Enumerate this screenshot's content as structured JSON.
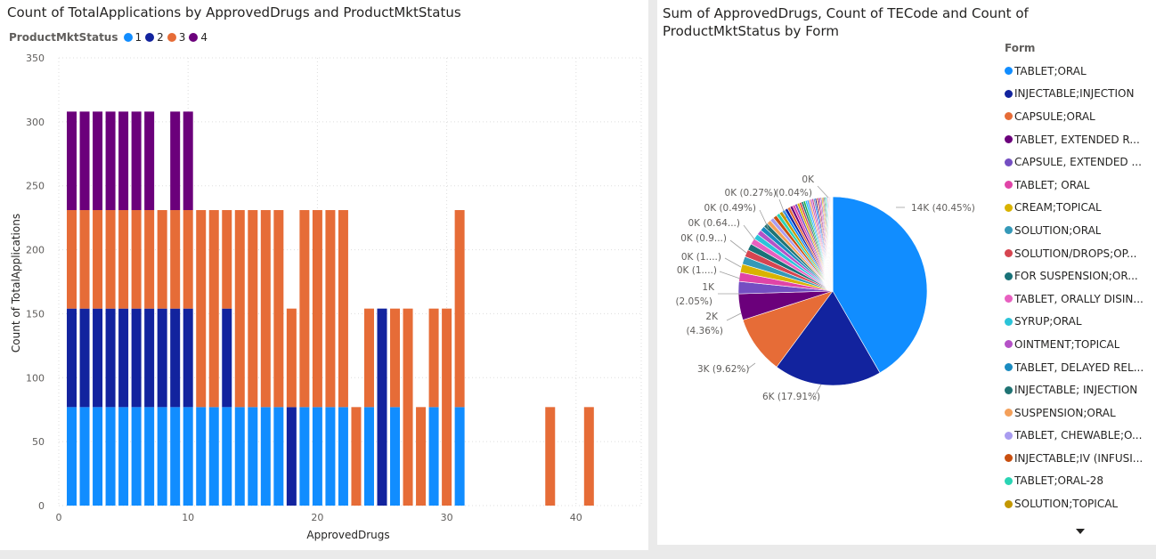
{
  "left_chart": {
    "title": "Count of TotalApplications by ApprovedDrugs and ProductMktStatus",
    "legend_title": "ProductMktStatus",
    "colors": {
      "1": "#118dff",
      "2": "#12239e",
      "3": "#e66c37",
      "4": "#6b007b"
    }
  },
  "right_chart": {
    "title": "Sum of ApprovedDrugs, Count of TECode and Count of ProductMktStatus by Form",
    "legend_title": "Form",
    "slice_labels": [
      "14K (40.45%)",
      "6K (17.91%)",
      "3K (9.62%)",
      "2K",
      "(4.36%)",
      "1K",
      "(2.05%)",
      "0K (1....)",
      "0K (1....)",
      "0K (0.9...)",
      "0K (0.64...)",
      "0K (0.49%)",
      "0K (0.27%)",
      "(0.04%)",
      "0K"
    ],
    "legend_items": [
      {
        "label": "TABLET;ORAL",
        "color": "#118dff"
      },
      {
        "label": "INJECTABLE;INJECTION",
        "color": "#12239e"
      },
      {
        "label": "CAPSULE;ORAL",
        "color": "#e66c37"
      },
      {
        "label": "TABLET, EXTENDED R...",
        "color": "#6b007b"
      },
      {
        "label": "CAPSULE, EXTENDED ...",
        "color": "#744ec2"
      },
      {
        "label": "TABLET; ORAL",
        "color": "#e044a7"
      },
      {
        "label": "CREAM;TOPICAL",
        "color": "#d9b300"
      },
      {
        "label": "SOLUTION;ORAL",
        "color": "#3599b8"
      },
      {
        "label": "SOLUTION/DROPS;OP...",
        "color": "#d64550"
      },
      {
        "label": "FOR SUSPENSION;OR...",
        "color": "#197278"
      },
      {
        "label": "TABLET, ORALLY DISIN...",
        "color": "#e860c0"
      },
      {
        "label": "SYRUP;ORAL",
        "color": "#2bc4d9"
      },
      {
        "label": "OINTMENT;TOPICAL",
        "color": "#b552c7"
      },
      {
        "label": "TABLET, DELAYED REL...",
        "color": "#1a8bc0"
      },
      {
        "label": "INJECTABLE; INJECTION",
        "color": "#1f7373"
      },
      {
        "label": "SUSPENSION;ORAL",
        "color": "#f4a05a"
      },
      {
        "label": "TABLET, CHEWABLE;O...",
        "color": "#a99cf0"
      },
      {
        "label": "INJECTABLE;IV (INFUSI...",
        "color": "#c94f0f"
      },
      {
        "label": "TABLET;ORAL-28",
        "color": "#2ad4b4"
      },
      {
        "label": "SOLUTION;TOPICAL",
        "color": "#c39700"
      }
    ]
  },
  "chart_data": [
    {
      "type": "bar",
      "title": "Count of TotalApplications by ApprovedDrugs and ProductMktStatus",
      "xlabel": "ApprovedDrugs",
      "ylabel": "Count of TotalApplications",
      "xlim": [
        0,
        45
      ],
      "ylim": [
        0,
        350
      ],
      "xticks": [
        0,
        10,
        20,
        30,
        40
      ],
      "yticks": [
        0,
        50,
        100,
        150,
        200,
        250,
        300,
        350
      ],
      "grid": true,
      "stacked": true,
      "legend_title": "ProductMktStatus",
      "legend_position": "top-left",
      "series": [
        {
          "name": "1",
          "color": "#118dff",
          "points": [
            [
              1,
              77
            ],
            [
              2,
              77
            ],
            [
              3,
              77
            ],
            [
              4,
              77
            ],
            [
              5,
              77
            ],
            [
              6,
              77
            ],
            [
              7,
              77
            ],
            [
              8,
              77
            ],
            [
              9,
              77
            ],
            [
              10,
              77
            ],
            [
              11,
              77
            ],
            [
              12,
              77
            ],
            [
              13,
              77
            ],
            [
              14,
              77
            ],
            [
              15,
              77
            ],
            [
              16,
              77
            ],
            [
              17,
              77
            ],
            [
              19,
              77
            ],
            [
              20,
              77
            ],
            [
              21,
              77
            ],
            [
              22,
              77
            ],
            [
              24,
              77
            ],
            [
              26,
              77
            ],
            [
              29,
              77
            ],
            [
              31,
              77
            ]
          ]
        },
        {
          "name": "2",
          "color": "#12239e",
          "points": [
            [
              1,
              77
            ],
            [
              2,
              77
            ],
            [
              3,
              77
            ],
            [
              4,
              77
            ],
            [
              5,
              77
            ],
            [
              6,
              77
            ],
            [
              7,
              77
            ],
            [
              8,
              77
            ],
            [
              9,
              77
            ],
            [
              10,
              77
            ],
            [
              13,
              77
            ],
            [
              18,
              77
            ],
            [
              25,
              154
            ]
          ]
        },
        {
          "name": "3",
          "color": "#e66c37",
          "points": [
            [
              1,
              77
            ],
            [
              2,
              77
            ],
            [
              3,
              77
            ],
            [
              4,
              77
            ],
            [
              5,
              77
            ],
            [
              6,
              77
            ],
            [
              7,
              77
            ],
            [
              8,
              77
            ],
            [
              9,
              77
            ],
            [
              10,
              77
            ],
            [
              11,
              154
            ],
            [
              12,
              154
            ],
            [
              13,
              77
            ],
            [
              14,
              154
            ],
            [
              15,
              154
            ],
            [
              16,
              154
            ],
            [
              17,
              154
            ],
            [
              18,
              77
            ],
            [
              19,
              154
            ],
            [
              20,
              154
            ],
            [
              21,
              154
            ],
            [
              22,
              154
            ],
            [
              23,
              77
            ],
            [
              24,
              77
            ],
            [
              26,
              77
            ],
            [
              27,
              154
            ],
            [
              28,
              77
            ],
            [
              29,
              77
            ],
            [
              30,
              154
            ],
            [
              31,
              154
            ],
            [
              38,
              77
            ],
            [
              41,
              77
            ]
          ]
        },
        {
          "name": "4",
          "color": "#6b007b",
          "points": [
            [
              1,
              77
            ],
            [
              2,
              77
            ],
            [
              3,
              77
            ],
            [
              4,
              77
            ],
            [
              5,
              77
            ],
            [
              6,
              77
            ],
            [
              7,
              77
            ],
            [
              9,
              77
            ],
            [
              10,
              77
            ]
          ]
        }
      ]
    },
    {
      "type": "pie",
      "title": "Sum of ApprovedDrugs, Count of TECode and Count of ProductMktStatus by Form",
      "legend_title": "Form",
      "legend_position": "right",
      "slices": [
        {
          "label": "TABLET;ORAL",
          "value": 40.45
        },
        {
          "label": "INJECTABLE;INJECTION",
          "value": 17.91
        },
        {
          "label": "CAPSULE;ORAL",
          "value": 9.62
        },
        {
          "label": "TABLET, EXTENDED R...",
          "value": 4.36
        },
        {
          "label": "CAPSULE, EXTENDED ...",
          "value": 2.05
        },
        {
          "label": "TABLET; ORAL",
          "value": 1.5
        },
        {
          "label": "CREAM;TOPICAL",
          "value": 1.4
        },
        {
          "label": "SOLUTION;ORAL",
          "value": 1.3
        },
        {
          "label": "SOLUTION/DROPS;OP...",
          "value": 1.2
        },
        {
          "label": "FOR SUSPENSION;OR...",
          "value": 1.1
        },
        {
          "label": "TABLET, ORALLY DISIN...",
          "value": 1.0
        },
        {
          "label": "SYRUP;ORAL",
          "value": 0.9
        },
        {
          "label": "OINTMENT;TOPICAL",
          "value": 0.85
        },
        {
          "label": "TABLET, DELAYED REL...",
          "value": 0.8
        },
        {
          "label": "INJECTABLE; INJECTION",
          "value": 0.75
        },
        {
          "label": "SUSPENSION;ORAL",
          "value": 0.7
        },
        {
          "label": "TABLET, CHEWABLE;O...",
          "value": 0.65
        },
        {
          "label": "INJECTABLE;IV (INFUSI...",
          "value": 0.64
        },
        {
          "label": "TABLET;ORAL-28",
          "value": 0.6
        },
        {
          "label": "SOLUTION;TOPICAL",
          "value": 0.55
        }
      ],
      "other_slices": [
        0.5,
        0.49,
        0.48,
        0.45,
        0.42,
        0.4,
        0.38,
        0.36,
        0.34,
        0.32,
        0.3,
        0.29,
        0.28,
        0.27,
        0.26,
        0.25,
        0.24,
        0.23,
        0.22,
        0.21,
        0.2,
        0.19,
        0.18,
        0.17,
        0.16,
        0.15,
        0.14,
        0.13,
        0.12,
        0.11,
        0.1,
        0.09,
        0.08,
        0.07,
        0.06,
        0.05,
        0.04
      ],
      "other_colors": [
        "#118dff",
        "#12239e",
        "#e66c37",
        "#6b007b",
        "#e044a7",
        "#744ec2",
        "#d9b300",
        "#d64550",
        "#197278",
        "#1aab40",
        "#15c6f4",
        "#4092ff",
        "#ffa058",
        "#be5dc9",
        "#c83d95"
      ]
    }
  ]
}
